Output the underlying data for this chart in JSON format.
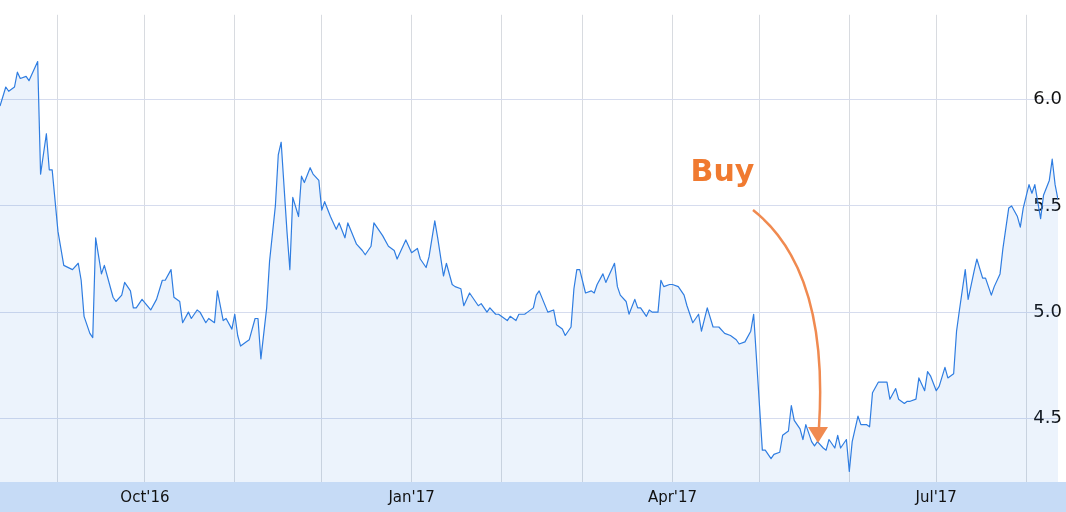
{
  "chart_data": {
    "type": "area",
    "x": [
      "2016-08-12",
      "2016-08-14",
      "2016-08-15",
      "2016-08-17",
      "2016-08-18",
      "2016-08-19",
      "2016-08-21",
      "2016-08-22",
      "2016-08-23",
      "2016-08-25",
      "2016-08-26",
      "2016-08-28",
      "2016-08-29",
      "2016-08-30",
      "2016-09-01",
      "2016-09-02",
      "2016-09-03",
      "2016-09-06",
      "2016-09-08",
      "2016-09-09",
      "2016-09-10",
      "2016-09-12",
      "2016-09-13",
      "2016-09-14",
      "2016-09-16",
      "2016-09-17",
      "2016-09-20",
      "2016-09-21",
      "2016-09-23",
      "2016-09-24",
      "2016-09-26",
      "2016-09-27",
      "2016-09-28",
      "2016-09-30",
      "2016-10-03",
      "2016-10-05",
      "2016-10-07",
      "2016-10-08",
      "2016-10-10",
      "2016-10-11",
      "2016-10-13",
      "2016-10-14",
      "2016-10-16",
      "2016-10-17",
      "2016-10-19",
      "2016-10-20",
      "2016-10-22",
      "2016-10-23",
      "2016-10-25",
      "2016-10-26",
      "2016-10-28",
      "2016-10-29",
      "2016-10-31",
      "2016-11-01",
      "2016-11-02",
      "2016-11-03",
      "2016-11-05",
      "2016-11-06",
      "2016-11-08",
      "2016-11-09",
      "2016-11-10",
      "2016-11-12",
      "2016-11-13",
      "2016-11-15",
      "2016-11-16",
      "2016-11-17",
      "2016-11-19",
      "2016-11-20",
      "2016-11-21",
      "2016-11-23",
      "2016-11-24",
      "2016-11-25",
      "2016-11-27",
      "2016-11-28",
      "2016-11-30",
      "2016-12-01",
      "2016-12-02",
      "2016-12-04",
      "2016-12-06",
      "2016-12-07",
      "2016-12-09",
      "2016-12-10",
      "2016-12-13",
      "2016-12-15",
      "2016-12-16",
      "2016-12-18",
      "2016-12-19",
      "2016-12-21",
      "2016-12-22",
      "2016-12-24",
      "2016-12-26",
      "2016-12-27",
      "2016-12-30",
      "2017-01-01",
      "2017-01-03",
      "2017-01-04",
      "2017-01-06",
      "2017-01-07",
      "2017-01-09",
      "2017-01-10",
      "2017-01-12",
      "2017-01-13",
      "2017-01-15",
      "2017-01-16",
      "2017-01-18",
      "2017-01-19",
      "2017-01-21",
      "2017-01-22",
      "2017-01-24",
      "2017-01-25",
      "2017-01-27",
      "2017-01-28",
      "2017-01-30",
      "2017-01-31",
      "2017-02-03",
      "2017-02-04",
      "2017-02-06",
      "2017-02-07",
      "2017-02-09",
      "2017-02-10",
      "2017-02-12",
      "2017-02-13",
      "2017-02-14",
      "2017-02-17",
      "2017-02-19",
      "2017-02-20",
      "2017-02-22",
      "2017-02-23",
      "2017-02-25",
      "2017-02-26",
      "2017-02-27",
      "2017-02-28",
      "2017-03-02",
      "2017-03-04",
      "2017-03-05",
      "2017-03-06",
      "2017-03-08",
      "2017-03-09",
      "2017-03-10",
      "2017-03-12",
      "2017-03-13",
      "2017-03-14",
      "2017-03-16",
      "2017-03-17",
      "2017-03-19",
      "2017-03-20",
      "2017-03-21",
      "2017-03-23",
      "2017-03-24",
      "2017-03-25",
      "2017-03-27",
      "2017-03-28",
      "2017-03-29",
      "2017-03-31",
      "2017-04-01",
      "2017-04-03",
      "2017-04-05",
      "2017-04-06",
      "2017-04-08",
      "2017-04-10",
      "2017-04-11",
      "2017-04-13",
      "2017-04-15",
      "2017-04-17",
      "2017-04-19",
      "2017-04-21",
      "2017-04-23",
      "2017-04-24",
      "2017-04-26",
      "2017-04-28",
      "2017-04-29",
      "2017-05-02",
      "2017-05-03",
      "2017-05-05",
      "2017-05-06",
      "2017-05-08",
      "2017-05-09",
      "2017-05-11",
      "2017-05-12",
      "2017-05-13",
      "2017-05-15",
      "2017-05-16",
      "2017-05-17",
      "2017-05-19",
      "2017-05-20",
      "2017-05-21",
      "2017-05-23",
      "2017-05-24",
      "2017-05-25",
      "2017-05-27",
      "2017-05-28",
      "2017-05-29",
      "2017-05-31",
      "2017-06-01",
      "2017-06-02",
      "2017-06-04",
      "2017-06-05",
      "2017-06-07",
      "2017-06-08",
      "2017-06-09",
      "2017-06-11",
      "2017-06-12",
      "2017-06-14",
      "2017-06-15",
      "2017-06-17",
      "2017-06-18",
      "2017-06-20",
      "2017-06-21",
      "2017-06-22",
      "2017-06-24",
      "2017-06-25",
      "2017-06-27",
      "2017-06-28",
      "2017-06-29",
      "2017-07-01",
      "2017-07-02",
      "2017-07-04",
      "2017-07-05",
      "2017-07-07",
      "2017-07-08",
      "2017-07-09",
      "2017-07-11",
      "2017-07-12",
      "2017-07-14",
      "2017-07-15",
      "2017-07-17",
      "2017-07-18",
      "2017-07-20",
      "2017-07-21",
      "2017-07-23",
      "2017-07-24",
      "2017-07-26",
      "2017-07-27",
      "2017-07-29",
      "2017-07-30",
      "2017-07-31",
      "2017-08-02",
      "2017-08-03",
      "2017-08-04",
      "2017-08-06",
      "2017-08-07",
      "2017-08-09",
      "2017-08-10",
      "2017-08-11",
      "2017-08-12"
    ],
    "series": [
      {
        "color": "#2f7de1",
        "values": [
          5.97,
          6.06,
          6.04,
          6.06,
          6.13,
          6.1,
          6.11,
          6.09,
          6.12,
          6.18,
          5.65,
          5.84,
          5.67,
          5.67,
          5.38,
          5.3,
          5.22,
          5.2,
          5.23,
          5.15,
          4.98,
          4.9,
          4.88,
          5.35,
          5.18,
          5.22,
          5.07,
          5.05,
          5.08,
          5.14,
          5.1,
          5.02,
          5.02,
          5.06,
          5.01,
          5.06,
          5.15,
          5.15,
          5.2,
          5.07,
          5.05,
          4.95,
          5.0,
          4.97,
          5.01,
          5.0,
          4.95,
          4.97,
          4.95,
          5.1,
          4.96,
          4.97,
          4.92,
          4.99,
          4.89,
          4.84,
          4.86,
          4.87,
          4.97,
          4.97,
          4.78,
          5.02,
          5.24,
          5.5,
          5.74,
          5.8,
          5.38,
          5.2,
          5.54,
          5.45,
          5.64,
          5.61,
          5.68,
          5.65,
          5.62,
          5.48,
          5.52,
          5.45,
          5.39,
          5.42,
          5.35,
          5.42,
          5.32,
          5.29,
          5.27,
          5.31,
          5.42,
          5.38,
          5.36,
          5.31,
          5.29,
          5.25,
          5.34,
          5.28,
          5.3,
          5.25,
          5.21,
          5.26,
          5.43,
          5.35,
          5.17,
          5.23,
          5.13,
          5.12,
          5.11,
          5.03,
          5.09,
          5.07,
          5.03,
          5.04,
          5.0,
          5.02,
          4.99,
          4.99,
          4.96,
          4.98,
          4.96,
          4.99,
          4.99,
          5.0,
          5.02,
          5.08,
          5.1,
          5.0,
          5.01,
          4.94,
          4.92,
          4.89,
          4.93,
          5.11,
          5.2,
          5.2,
          5.09,
          5.1,
          5.09,
          5.13,
          5.18,
          5.14,
          5.17,
          5.23,
          5.12,
          5.08,
          5.05,
          4.99,
          5.06,
          5.02,
          5.02,
          4.98,
          5.01,
          5.0,
          5.0,
          5.15,
          5.12,
          5.13,
          5.13,
          5.12,
          5.08,
          5.03,
          4.95,
          4.99,
          4.91,
          5.02,
          4.93,
          4.93,
          4.9,
          4.89,
          4.87,
          4.85,
          4.86,
          4.91,
          4.99,
          4.35,
          4.35,
          4.31,
          4.33,
          4.34,
          4.42,
          4.44,
          4.56,
          4.49,
          4.45,
          4.4,
          4.47,
          4.39,
          4.37,
          4.39,
          4.36,
          4.35,
          4.4,
          4.36,
          4.42,
          4.36,
          4.4,
          4.25,
          4.39,
          4.51,
          4.47,
          4.47,
          4.46,
          4.62,
          4.67,
          4.67,
          4.67,
          4.59,
          4.64,
          4.59,
          4.57,
          4.58,
          4.58,
          4.59,
          4.69,
          4.63,
          4.72,
          4.7,
          4.63,
          4.65,
          4.74,
          4.69,
          4.71,
          4.91,
          5.01,
          5.2,
          5.06,
          5.19,
          5.25,
          5.16,
          5.16,
          5.08,
          5.12,
          5.18,
          5.3,
          5.49,
          5.5,
          5.45,
          5.4,
          5.49,
          5.6,
          5.56,
          5.6,
          5.44,
          5.55,
          5.62,
          5.72,
          5.6,
          5.53
        ]
      }
    ],
    "xlim": [
      "2016-08-12",
      "2017-08-12"
    ],
    "xticks": [
      {
        "value": "2016-09-01",
        "label": null
      },
      {
        "value": "2016-10-01",
        "label": "Oct'16"
      },
      {
        "value": "2016-11-01",
        "label": null
      },
      {
        "value": "2016-12-01",
        "label": null
      },
      {
        "value": "2017-01-01",
        "label": "Jan'17"
      },
      {
        "value": "2017-02-01",
        "label": null
      },
      {
        "value": "2017-03-01",
        "label": null
      },
      {
        "value": "2017-04-01",
        "label": "Apr'17"
      },
      {
        "value": "2017-05-01",
        "label": null
      },
      {
        "value": "2017-06-01",
        "label": null
      },
      {
        "value": "2017-07-01",
        "label": "Jul'17"
      },
      {
        "value": "2017-08-01",
        "label": null
      }
    ],
    "ylim": [
      4.2,
      6.4
    ],
    "yticks": [
      4.5,
      {
        "value": 5,
        "label": "5.0"
      },
      5.5,
      {
        "value": 6,
        "label": "6.0"
      }
    ],
    "grid": true,
    "annotations": [
      {
        "text": "Buy",
        "x": "2017-05-21",
        "y": 4.42
      }
    ]
  }
}
